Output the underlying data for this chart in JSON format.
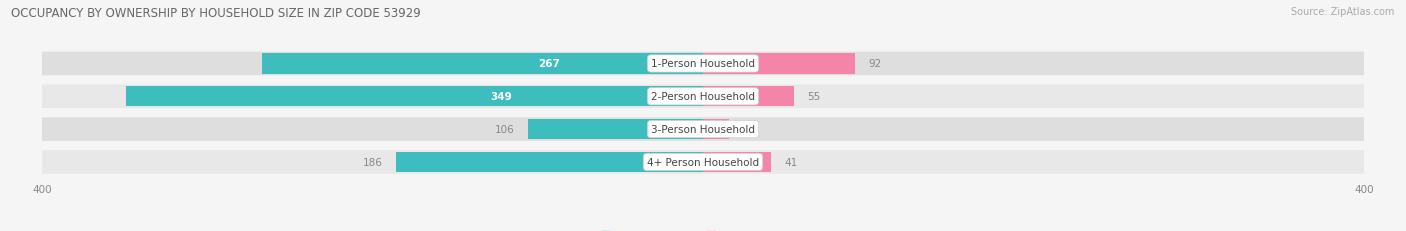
{
  "title": "OCCUPANCY BY OWNERSHIP BY HOUSEHOLD SIZE IN ZIP CODE 53929",
  "source": "Source: ZipAtlas.com",
  "categories": [
    "1-Person Household",
    "2-Person Household",
    "3-Person Household",
    "4+ Person Household"
  ],
  "owner_values": [
    267,
    349,
    106,
    186
  ],
  "renter_values": [
    92,
    55,
    16,
    41
  ],
  "owner_color": "#3DBDBD",
  "renter_color": "#F484A8",
  "background_color": "#F5F5F5",
  "row_bg_color": "#E8E8E8",
  "row_bg_light": "#EFEFEF",
  "axis_limit": 400,
  "title_fontsize": 8.5,
  "source_fontsize": 7,
  "label_fontsize": 7.5,
  "tick_fontsize": 7.5,
  "legend_fontsize": 7.5,
  "bar_height": 0.62,
  "owner_label_inside": [
    true,
    true,
    false,
    false
  ],
  "owner_label_color_inside": "#FFFFFF",
  "owner_label_color_outside": "#888888",
  "renter_label_color": "#888888"
}
